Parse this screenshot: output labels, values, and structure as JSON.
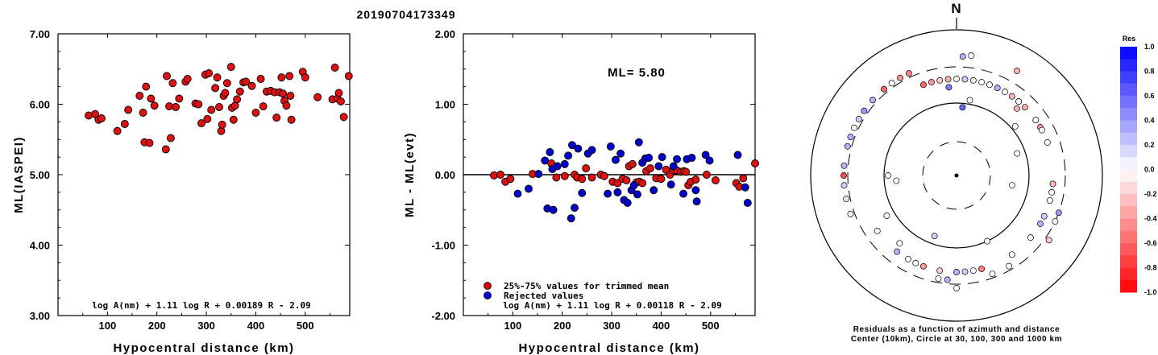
{
  "title": "20190704173349",
  "chart_data": [
    {
      "type": "scatter",
      "name": "left",
      "ylabel": "ML(IASPEI)",
      "xlabel": "Hypocentral distance (km)",
      "xlim": [
        0,
        590
      ],
      "ylim": [
        3.0,
        7.0
      ],
      "xticks": [
        "100",
        "200",
        "300",
        "400",
        "500"
      ],
      "yticks": [
        "3.00",
        "4.00",
        "5.00",
        "6.00",
        "7.00"
      ],
      "formula": "log A(nm) + 1.11 log R + 0.00189 R - 2.09",
      "points": [
        [
          62,
          5.84
        ],
        [
          75,
          5.86
        ],
        [
          82,
          5.78
        ],
        [
          88,
          5.8
        ],
        [
          120,
          5.62
        ],
        [
          135,
          5.72
        ],
        [
          142,
          5.92
        ],
        [
          165,
          6.12
        ],
        [
          172,
          5.88
        ],
        [
          175,
          5.46
        ],
        [
          178,
          6.25
        ],
        [
          185,
          5.45
        ],
        [
          188,
          6.08
        ],
        [
          195,
          5.98
        ],
        [
          218,
          5.36
        ],
        [
          220,
          6.4
        ],
        [
          225,
          5.97
        ],
        [
          228,
          5.52
        ],
        [
          232,
          6.3
        ],
        [
          238,
          5.96
        ],
        [
          245,
          6.08
        ],
        [
          258,
          6.32
        ],
        [
          262,
          6.36
        ],
        [
          278,
          6.01
        ],
        [
          284,
          6.0
        ],
        [
          290,
          5.73
        ],
        [
          298,
          6.42
        ],
        [
          302,
          5.79
        ],
        [
          305,
          6.44
        ],
        [
          310,
          5.92
        ],
        [
          318,
          6.23
        ],
        [
          322,
          6.38
        ],
        [
          326,
          5.96
        ],
        [
          330,
          5.62
        ],
        [
          332,
          5.71
        ],
        [
          335,
          6.12
        ],
        [
          338,
          6.16
        ],
        [
          342,
          6.3
        ],
        [
          350,
          6.53
        ],
        [
          352,
          5.95
        ],
        [
          355,
          5.78
        ],
        [
          358,
          5.98
        ],
        [
          362,
          6.07
        ],
        [
          368,
          6.18
        ],
        [
          375,
          6.31
        ],
        [
          380,
          6.32
        ],
        [
          392,
          6.26
        ],
        [
          400,
          5.88
        ],
        [
          410,
          6.36
        ],
        [
          415,
          5.97
        ],
        [
          422,
          6.18
        ],
        [
          430,
          6.19
        ],
        [
          438,
          6.17
        ],
        [
          442,
          5.81
        ],
        [
          448,
          6.17
        ],
        [
          452,
          6.38
        ],
        [
          455,
          6.15
        ],
        [
          458,
          6.05
        ],
        [
          462,
          5.98
        ],
        [
          468,
          6.4
        ],
        [
          470,
          6.12
        ],
        [
          472,
          5.78
        ],
        [
          495,
          6.46
        ],
        [
          500,
          6.38
        ],
        [
          525,
          6.1
        ],
        [
          555,
          6.07
        ],
        [
          560,
          6.52
        ],
        [
          565,
          6.08
        ],
        [
          568,
          6.16
        ],
        [
          572,
          6.04
        ],
        [
          578,
          5.82
        ],
        [
          588,
          6.4
        ],
        [
          592,
          6.27
        ]
      ]
    },
    {
      "type": "scatter",
      "name": "middle",
      "ylabel": "ML - ML(evt)",
      "xlabel": "Hypocentral distance (km)",
      "xlim": [
        0,
        590
      ],
      "ylim": [
        -2.0,
        2.0
      ],
      "xticks": [
        "100",
        "200",
        "300",
        "400",
        "500"
      ],
      "yticks": [
        "-2.00",
        "-1.00",
        "0.00",
        "1.00",
        "2.00"
      ],
      "annotation": "ML= 5.80",
      "legend": {
        "placement": "bottom-left",
        "entries": [
          {
            "label": "25%-75% values for trimmed mean",
            "color": "#e00000"
          },
          {
            "label": "Rejected values",
            "color": "#0000dd"
          }
        ]
      },
      "formula": "log A(nm) + 1.11 log R + 0.00118 R - 2.09",
      "series": [
        {
          "name": "25%-75% values for trimmed mean",
          "color": "#dd1111",
          "points": [
            [
              62,
              -0.01
            ],
            [
              75,
              0.0
            ],
            [
              85,
              -0.1
            ],
            [
              95,
              -0.06
            ],
            [
              140,
              0.01
            ],
            [
              178,
              0.16
            ],
            [
              188,
              -0.04
            ],
            [
              205,
              -0.02
            ],
            [
              225,
              0.0
            ],
            [
              230,
              -0.04
            ],
            [
              240,
              -0.06
            ],
            [
              248,
              0.09
            ],
            [
              260,
              -0.04
            ],
            [
              278,
              0.0
            ],
            [
              285,
              -0.02
            ],
            [
              302,
              -0.1
            ],
            [
              312,
              -0.12
            ],
            [
              322,
              -0.06
            ],
            [
              330,
              -0.08
            ],
            [
              335,
              0.12
            ],
            [
              342,
              0.15
            ],
            [
              350,
              -0.11
            ],
            [
              356,
              -0.1
            ],
            [
              362,
              -0.12
            ],
            [
              370,
              0.05
            ],
            [
              378,
              0.09
            ],
            [
              390,
              -0.05
            ],
            [
              400,
              -0.06
            ],
            [
              410,
              0.07
            ],
            [
              418,
              0.0
            ],
            [
              425,
              0.06
            ],
            [
              432,
              0.06
            ],
            [
              440,
              0.04
            ],
            [
              446,
              0.05
            ],
            [
              450,
              0.04
            ],
            [
              455,
              -0.15
            ],
            [
              460,
              -0.1
            ],
            [
              470,
              -0.07
            ],
            [
              492,
              0.0
            ],
            [
              510,
              -0.08
            ],
            [
              552,
              -0.12
            ],
            [
              558,
              -0.17
            ],
            [
              566,
              -0.05
            ],
            [
              590,
              0.16
            ]
          ]
        },
        {
          "name": "Rejected values",
          "color": "#0000cc",
          "points": [
            [
              110,
              -0.27
            ],
            [
              132,
              -0.2
            ],
            [
              152,
              0.01
            ],
            [
              165,
              0.2
            ],
            [
              170,
              -0.48
            ],
            [
              175,
              0.32
            ],
            [
              180,
              0.08
            ],
            [
              182,
              -0.5
            ],
            [
              190,
              0.12
            ],
            [
              205,
              0.15
            ],
            [
              212,
              0.27
            ],
            [
              218,
              -0.62
            ],
            [
              220,
              0.42
            ],
            [
              225,
              -0.47
            ],
            [
              232,
              0.37
            ],
            [
              240,
              -0.26
            ],
            [
              252,
              0.3
            ],
            [
              260,
              0.35
            ],
            [
              292,
              -0.27
            ],
            [
              298,
              0.4
            ],
            [
              308,
              0.21
            ],
            [
              312,
              -0.25
            ],
            [
              318,
              0.3
            ],
            [
              325,
              -0.36
            ],
            [
              332,
              -0.4
            ],
            [
              340,
              -0.22
            ],
            [
              345,
              -0.15
            ],
            [
              352,
              -0.28
            ],
            [
              355,
              0.46
            ],
            [
              362,
              0.17
            ],
            [
              368,
              0.23
            ],
            [
              375,
              0.24
            ],
            [
              385,
              -0.22
            ],
            [
              395,
              0.12
            ],
            [
              402,
              0.25
            ],
            [
              420,
              -0.14
            ],
            [
              425,
              0.12
            ],
            [
              432,
              0.22
            ],
            [
              445,
              -0.27
            ],
            [
              452,
              0.22
            ],
            [
              462,
              0.24
            ],
            [
              470,
              -0.22
            ],
            [
              472,
              -0.38
            ],
            [
              490,
              0.28
            ],
            [
              498,
              0.2
            ],
            [
              555,
              0.28
            ],
            [
              575,
              -0.4
            ],
            [
              570,
              -0.18
            ]
          ]
        }
      ]
    },
    {
      "type": "scatter",
      "name": "polar",
      "north_label": "N",
      "caption_line1": "Residuals as a function of azimuth and distance",
      "caption_line2": "Center (10km), Circle at 30, 100, 300 and 1000 km",
      "colorbar": {
        "title": "Res",
        "ticks": [
          "1.0",
          "0.8",
          "0.6",
          "0.4",
          "0.2",
          "0.0",
          "-0.2",
          "-0.4",
          "-0.6",
          "-0.8",
          "-1.0"
        ]
      },
      "stations": [
        [
          335,
          140,
          -0.5
        ],
        [
          330,
          140,
          -0.4
        ],
        [
          325,
          140,
          0.0
        ],
        [
          320,
          140,
          -0.6
        ],
        [
          312,
          140,
          0.3
        ],
        [
          305,
          140,
          0.4
        ],
        [
          300,
          140,
          0.2
        ],
        [
          295,
          140,
          0.0
        ],
        [
          290,
          140,
          0.3
        ],
        [
          285,
          140,
          0.3
        ],
        [
          275,
          140,
          0.3
        ],
        [
          270,
          140,
          -0.7
        ],
        [
          265,
          140,
          0.2
        ],
        [
          258,
          140,
          0.1
        ],
        [
          250,
          140,
          0.0
        ],
        [
          340,
          120,
          -0.6
        ],
        [
          345,
          120,
          -0.4
        ],
        [
          350,
          120,
          -0.2
        ],
        [
          355,
          120,
          -0.3
        ],
        [
          360,
          120,
          0.0
        ],
        [
          5,
          120,
          0.2
        ],
        [
          10,
          120,
          -0.1
        ],
        [
          15,
          120,
          0.0
        ],
        [
          20,
          120,
          0.0
        ],
        [
          25,
          120,
          0.3
        ],
        [
          30,
          120,
          0.0
        ],
        [
          35,
          120,
          -0.3
        ],
        [
          40,
          120,
          -0.2
        ],
        [
          45,
          120,
          -0.3
        ],
        [
          55,
          120,
          -0.2
        ],
        [
          60,
          120,
          -0.4
        ],
        [
          62,
          120,
          0.0
        ],
        [
          70,
          120,
          0.0
        ],
        [
          95,
          120,
          -0.3
        ],
        [
          100,
          120,
          0.0
        ],
        [
          105,
          120,
          0.0
        ],
        [
          115,
          120,
          0.2
        ],
        [
          120,
          120,
          0.3
        ],
        [
          130,
          120,
          0.0
        ],
        [
          145,
          120,
          0.0
        ],
        [
          165,
          120,
          -0.5
        ],
        [
          170,
          120,
          0.0
        ],
        [
          175,
          120,
          0.2
        ],
        [
          180,
          120,
          0.3
        ],
        [
          190,
          120,
          -0.2
        ],
        [
          200,
          120,
          -0.4
        ],
        [
          205,
          120,
          0.0
        ],
        [
          210,
          120,
          0.0
        ],
        [
          218,
          120,
          0.3
        ],
        [
          235,
          120,
          0.0
        ],
        [
          5,
          85,
          0.6
        ],
        [
          10,
          95,
          0.0
        ],
        [
          355,
          110,
          0.5
        ],
        [
          3,
          148,
          0.3
        ],
        [
          7,
          150,
          0.0
        ],
        [
          30,
          150,
          -0.3
        ],
        [
          40,
          120,
          0.0
        ],
        [
          42,
          112,
          -0.3
        ],
        [
          50,
          95,
          0.0
        ],
        [
          55,
          120,
          0.0
        ],
        [
          110,
          135,
          0.4
        ],
        [
          115,
          135,
          0.0
        ],
        [
          125,
          140,
          -0.2
        ],
        [
          150,
          130,
          0.0
        ],
        [
          160,
          130,
          0.0
        ],
        [
          180,
          140,
          0.0
        ],
        [
          185,
          130,
          0.3
        ],
        [
          190,
          130,
          0.0
        ],
        [
          240,
          100,
          0.0
        ],
        [
          220,
          110,
          0.0
        ],
        [
          270,
          85,
          0.0
        ],
        [
          265,
          75,
          0.0
        ],
        [
          70,
          80,
          0.0
        ],
        [
          100,
          70,
          0.0
        ],
        [
          200,
          80,
          0.2
        ],
        [
          155,
          90,
          0.0
        ]
      ]
    }
  ]
}
